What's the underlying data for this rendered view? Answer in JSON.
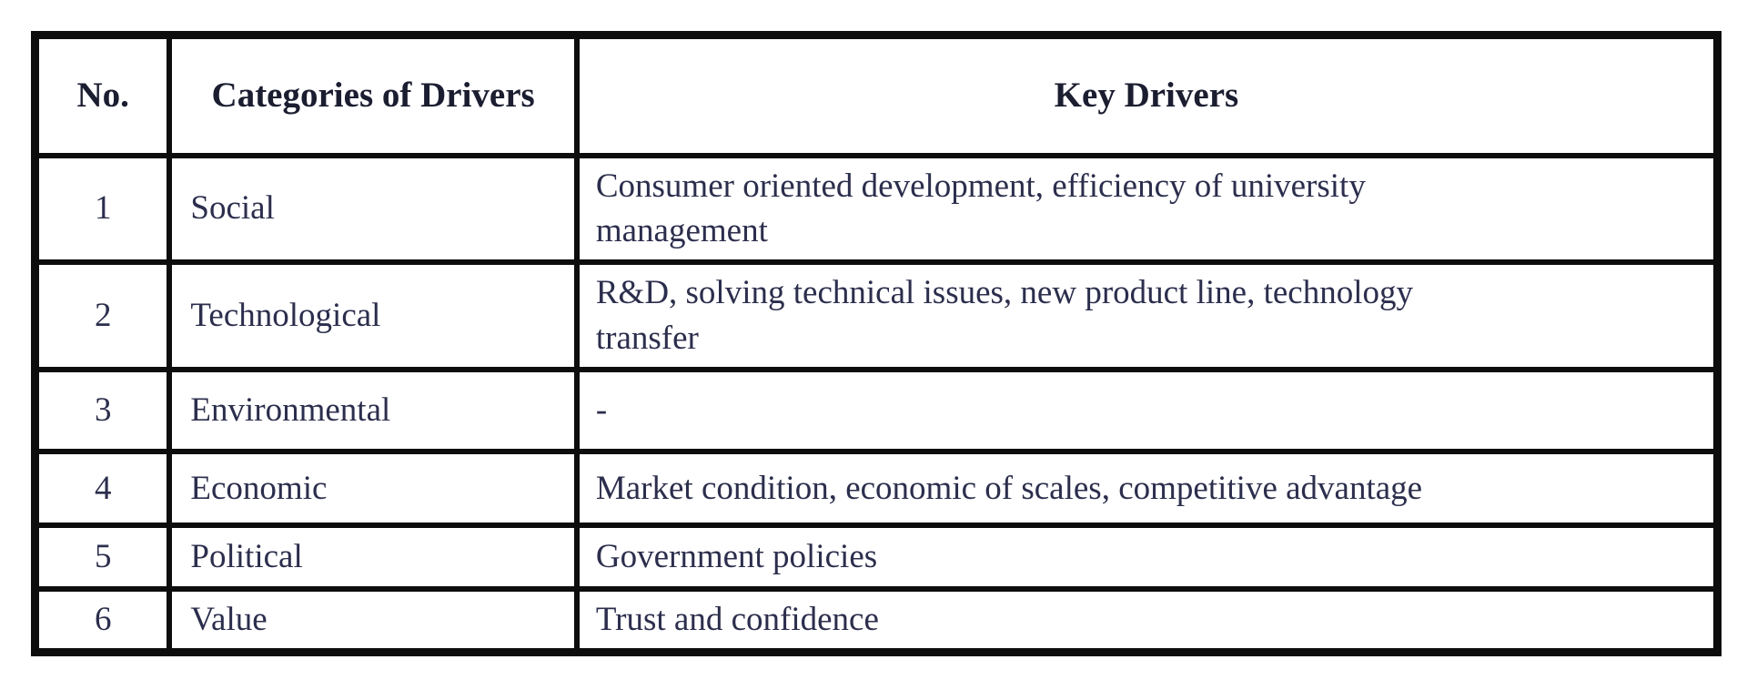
{
  "table": {
    "columns": {
      "no": "No.",
      "category": "Categories of Drivers",
      "drivers": "Key Drivers"
    },
    "rows": [
      {
        "no": "1",
        "category": "Social",
        "drivers": "Consumer oriented development, efficiency of university\nmanagement"
      },
      {
        "no": "2",
        "category": "Technological",
        "drivers": "R&D, solving technical issues, new product line, technology\ntransfer"
      },
      {
        "no": "3",
        "category": "Environmental",
        "drivers": "-"
      },
      {
        "no": "4",
        "category": "Economic",
        "drivers": "Market condition, economic of scales, competitive advantage"
      },
      {
        "no": "5",
        "category": "Political",
        "drivers": "Government policies"
      },
      {
        "no": "6",
        "category": "Value",
        "drivers": "Trust and confidence"
      }
    ]
  },
  "colors": {
    "border": "#0d0d0d",
    "header_text": "#1b1d30",
    "body_text": "#2c2e4d",
    "background": "#ffffff"
  }
}
